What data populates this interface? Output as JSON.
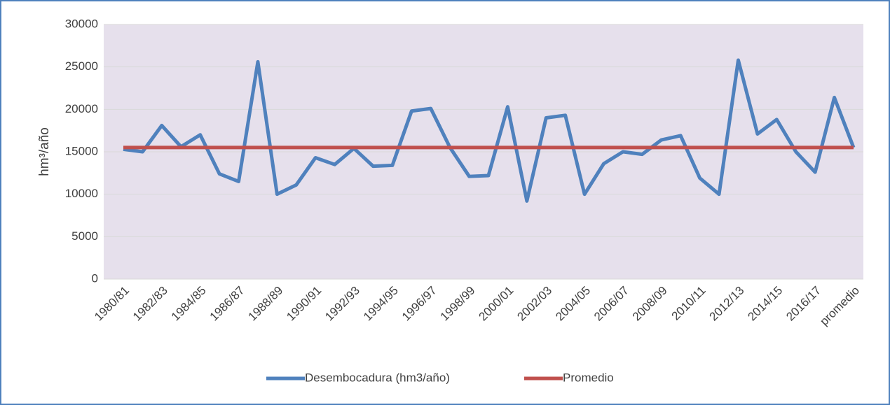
{
  "chart_data": {
    "type": "line",
    "y_label": "hm³/año",
    "categories": [
      "1980/81",
      null,
      "1982/83",
      null,
      "1984/85",
      null,
      "1986/87",
      null,
      "1988/89",
      null,
      "1990/91",
      null,
      "1992/93",
      null,
      "1994/95",
      null,
      "1996/97",
      null,
      "1998/99",
      null,
      "2000/01",
      null,
      "2002/03",
      null,
      "2004/05",
      null,
      "2006/07",
      null,
      "2008/09",
      null,
      "2010/11",
      null,
      "2012/13",
      null,
      "2014/15",
      null,
      "2016/17",
      null,
      "promedio"
    ],
    "series": [
      {
        "name": "Desembocadura (hm3/año)",
        "color": "#4f81bd",
        "values": [
          15300,
          15000,
          18100,
          15600,
          17000,
          12400,
          11500,
          25600,
          10000,
          11100,
          14300,
          13500,
          15400,
          13300,
          13400,
          19800,
          20100,
          15500,
          12100,
          12200,
          20300,
          9200,
          19000,
          19300,
          10000,
          13600,
          15000,
          14700,
          16400,
          16900,
          11900,
          10000,
          25800,
          17100,
          18800,
          15000,
          12600,
          21400,
          15500
        ]
      },
      {
        "name": "Promedio",
        "color": "#c0504d",
        "values": [
          15500,
          15500,
          15500,
          15500,
          15500,
          15500,
          15500,
          15500,
          15500,
          15500,
          15500,
          15500,
          15500,
          15500,
          15500,
          15500,
          15500,
          15500,
          15500,
          15500,
          15500,
          15500,
          15500,
          15500,
          15500,
          15500,
          15500,
          15500,
          15500,
          15500,
          15500,
          15500,
          15500,
          15500,
          15500,
          15500,
          15500,
          15500,
          15500
        ]
      }
    ],
    "ylim": [
      0,
      30000
    ],
    "yticks": [
      0,
      5000,
      10000,
      15000,
      20000,
      25000,
      30000
    ],
    "grid": true,
    "legend": "bottom",
    "plot_background": "#e6e0ec"
  }
}
